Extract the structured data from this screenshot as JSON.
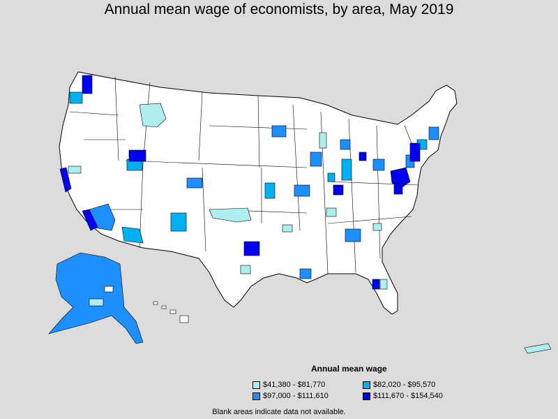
{
  "title": "Annual mean wage of economists, by area, May 2019",
  "legend": {
    "title": "Annual mean wage",
    "items": [
      {
        "label": "$41,380 - $81,770",
        "color": "#aeeeee"
      },
      {
        "label": "$82,020 - $95,570",
        "color": "#00b0f0"
      },
      {
        "label": "$97,000 - $111,610",
        "color": "#1e8fff"
      },
      {
        "label": "$111,670 - $154,540",
        "color": "#0000ee"
      }
    ]
  },
  "footnote": "Blank areas indicate data not available.",
  "colors": {
    "background": "#dcdcdc",
    "no_data": "#ffffff",
    "borders": "#000000"
  }
}
